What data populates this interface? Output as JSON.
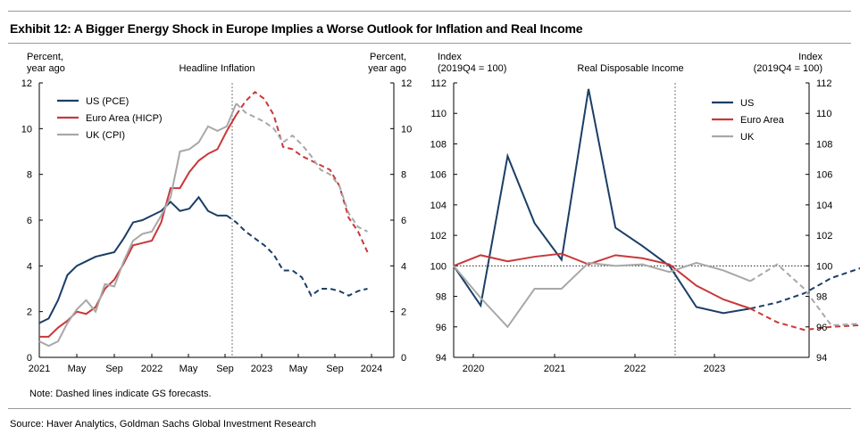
{
  "title": "Exhibit 12: A Bigger Energy Shock in Europe Implies a Worse Outlook for Inflation and Real Income",
  "note": "Note: Dashed lines indicate GS forecasts.",
  "source": "Source: Haver Analytics, Goldman Sachs Global Investment Research",
  "colors": {
    "us": "#1b3e66",
    "euro": "#c9383a",
    "uk": "#a8a8a8"
  },
  "chart_data": [
    {
      "type": "line",
      "title": "Headline Inflation",
      "ylabel_left": [
        "Percent,",
        "year ago"
      ],
      "ylabel_right": [
        "Percent,",
        "year ago"
      ],
      "ylim": [
        0,
        12
      ],
      "yticks": [
        "0",
        "2",
        "4",
        "6",
        "8",
        "10",
        "12"
      ],
      "xticks": [
        "2021",
        "May",
        "Sep",
        "2022",
        "May",
        "Sep",
        "2023",
        "May",
        "Sep",
        "2024"
      ],
      "legend_position": "top-left",
      "forecast_start": "2022-10",
      "series": [
        {
          "name": "US (PCE)",
          "color_key": "us",
          "actual": [
            1.5,
            1.7,
            2.5,
            3.6,
            4.0,
            4.2,
            4.4,
            4.5,
            4.6,
            5.2,
            5.9,
            6.0,
            6.2,
            6.4,
            6.8,
            6.4,
            6.5,
            7.0,
            6.4,
            6.2,
            6.2
          ],
          "forecast": [
            6.2,
            5.9,
            5.5,
            5.2,
            4.9,
            4.5,
            3.8,
            3.8,
            3.5,
            2.7,
            3.0,
            3.0,
            2.9,
            2.7,
            2.9,
            3.0
          ]
        },
        {
          "name": "Euro Area (HICP)",
          "color_key": "euro",
          "actual": [
            0.9,
            0.9,
            1.3,
            1.6,
            2.0,
            1.9,
            2.2,
            3.0,
            3.4,
            4.1,
            4.9,
            5.0,
            5.1,
            5.9,
            7.4,
            7.4,
            8.1,
            8.6,
            8.9,
            9.1,
            9.9,
            10.6
          ],
          "forecast": [
            10.6,
            11.2,
            11.6,
            11.3,
            10.6,
            9.2,
            9.1,
            8.8,
            8.6,
            8.4,
            8.2,
            7.5,
            6.1,
            5.5,
            4.6
          ]
        },
        {
          "name": "UK (CPI)",
          "color_key": "uk",
          "actual": [
            0.7,
            0.5,
            0.7,
            1.5,
            2.1,
            2.5,
            2.0,
            3.2,
            3.1,
            4.2,
            5.1,
            5.4,
            5.5,
            6.2,
            7.0,
            9.0,
            9.1,
            9.4,
            10.1,
            9.9,
            10.1,
            11.1
          ],
          "forecast": [
            11.1,
            10.7,
            10.5,
            10.3,
            10.0,
            9.4,
            9.7,
            9.3,
            8.8,
            8.2,
            8.0,
            7.5,
            6.3,
            5.7,
            5.5
          ]
        }
      ]
    },
    {
      "type": "line",
      "title": "Real Disposable Income",
      "ylabel_left": [
        "Index",
        "(2019Q4 = 100)"
      ],
      "ylabel_right": [
        "Index",
        "(2019Q4 = 100)"
      ],
      "ylim": [
        94,
        112
      ],
      "yticks": [
        "94",
        "96",
        "98",
        "100",
        "102",
        "104",
        "106",
        "108",
        "110",
        "112"
      ],
      "xticks": [
        "2020",
        "2021",
        "2022",
        "2023"
      ],
      "legend_position": "top-right",
      "reference_line": 100,
      "forecast_start": "2022Q3",
      "series": [
        {
          "name": "US",
          "color_key": "us",
          "actual": [
            100.0,
            97.4,
            107.2,
            102.8,
            100.4,
            111.6,
            102.5,
            101.3,
            100.0,
            97.3,
            96.9,
            97.2
          ],
          "forecast": [
            97.2,
            97.6,
            98.2,
            99.2,
            99.8,
            100.4,
            100.9,
            101.5
          ]
        },
        {
          "name": "Euro Area",
          "color_key": "euro",
          "actual": [
            100.0,
            100.7,
            100.3,
            100.6,
            100.8,
            100.1,
            100.7,
            100.5,
            100.1,
            98.7,
            97.8,
            97.2
          ],
          "forecast": [
            97.2,
            96.3,
            95.8,
            96.0,
            96.1,
            96.5
          ]
        },
        {
          "name": "UK",
          "color_key": "uk",
          "actual": [
            100.0,
            97.9,
            96.0,
            98.5,
            98.5,
            100.2,
            100.0,
            100.1,
            99.6,
            100.2,
            99.7,
            99.0
          ],
          "forecast": [
            99.0,
            100.1,
            98.5,
            96.1,
            96.2,
            96.9
          ]
        }
      ]
    }
  ]
}
